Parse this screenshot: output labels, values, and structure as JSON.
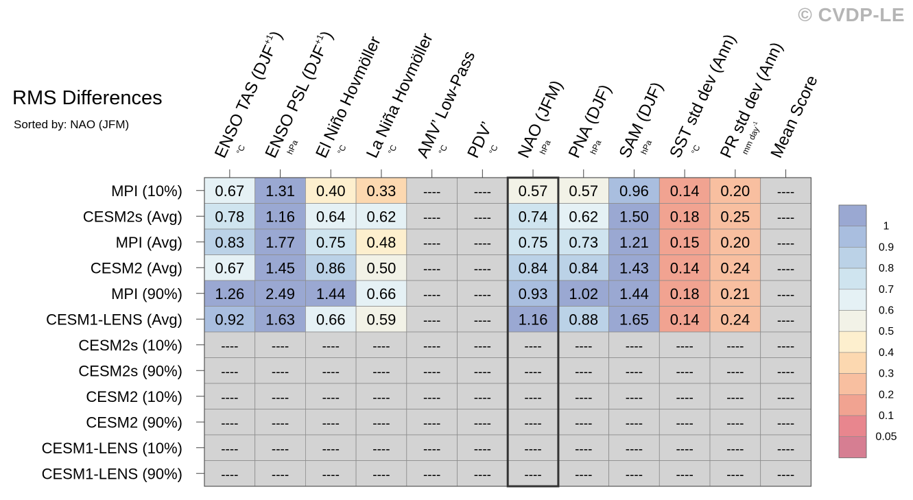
{
  "watermark": "© CVDP-LE",
  "chart_data": {
    "type": "heatmap",
    "title": "RMS Differences",
    "subtitle": "Sorted by: NAO (JFM)",
    "columns": [
      {
        "label": "ENSO TAS (DJF",
        "sup": "+1",
        "close": ")",
        "unit": "°C"
      },
      {
        "label": "ENSO PSL (DJF",
        "sup": "+1",
        "close": ")",
        "unit": "hPa"
      },
      {
        "label": "El Niño Hovmöller",
        "sup": "",
        "close": "",
        "unit": "°C"
      },
      {
        "label": "La Niña Hovmöller",
        "sup": "",
        "close": "",
        "unit": "°C"
      },
      {
        "label": "AMV’ Low-Pass",
        "sup": "",
        "close": "",
        "unit": "°C"
      },
      {
        "label": "PDV’",
        "sup": "",
        "close": "",
        "unit": "°C"
      },
      {
        "label": "NAO (JFM)",
        "sup": "",
        "close": "",
        "unit": "hPa"
      },
      {
        "label": "PNA (DJF)",
        "sup": "",
        "close": "",
        "unit": "hPa"
      },
      {
        "label": "SAM (DJF)",
        "sup": "",
        "close": "",
        "unit": "hPa"
      },
      {
        "label": "SST std dev (Ann)",
        "sup": "",
        "close": "",
        "unit": "°C"
      },
      {
        "label": "PR std dev (Ann)",
        "sup": "",
        "close": "",
        "unit": "mm day",
        "unit_sup": "-1"
      },
      {
        "label": "Mean Score",
        "sup": "",
        "close": "",
        "unit": ""
      }
    ],
    "rows": [
      "MPI (10%)",
      "CESM2s (Avg)",
      "MPI (Avg)",
      "CESM2 (Avg)",
      "MPI (90%)",
      "CESM1-LENS (Avg)",
      "CESM2s (10%)",
      "CESM2s (90%)",
      "CESM2 (10%)",
      "CESM2 (90%)",
      "CESM1-LENS (10%)",
      "CESM1-LENS (90%)"
    ],
    "values": [
      [
        0.67,
        1.31,
        0.4,
        0.33,
        null,
        null,
        0.57,
        0.57,
        0.96,
        0.14,
        0.2,
        null
      ],
      [
        0.78,
        1.16,
        0.64,
        0.62,
        null,
        null,
        0.74,
        0.62,
        1.5,
        0.18,
        0.25,
        null
      ],
      [
        0.83,
        1.77,
        0.75,
        0.48,
        null,
        null,
        0.75,
        0.73,
        1.21,
        0.15,
        0.2,
        null
      ],
      [
        0.67,
        1.45,
        0.86,
        0.5,
        null,
        null,
        0.84,
        0.84,
        1.43,
        0.14,
        0.24,
        null
      ],
      [
        1.26,
        2.49,
        1.44,
        0.66,
        null,
        null,
        0.93,
        1.02,
        1.44,
        0.18,
        0.21,
        null
      ],
      [
        0.92,
        1.63,
        0.66,
        0.59,
        null,
        null,
        1.16,
        0.88,
        1.65,
        0.14,
        0.24,
        null
      ],
      [
        null,
        null,
        null,
        null,
        null,
        null,
        null,
        null,
        null,
        null,
        null,
        null
      ],
      [
        null,
        null,
        null,
        null,
        null,
        null,
        null,
        null,
        null,
        null,
        null,
        null
      ],
      [
        null,
        null,
        null,
        null,
        null,
        null,
        null,
        null,
        null,
        null,
        null,
        null
      ],
      [
        null,
        null,
        null,
        null,
        null,
        null,
        null,
        null,
        null,
        null,
        null,
        null
      ],
      [
        null,
        null,
        null,
        null,
        null,
        null,
        null,
        null,
        null,
        null,
        null,
        null
      ],
      [
        null,
        null,
        null,
        null,
        null,
        null,
        null,
        null,
        null,
        null,
        null,
        null
      ]
    ],
    "missing_label": "----",
    "highlight_column": "NAO (JFM)",
    "colorbar": {
      "labels": [
        "1",
        "0.9",
        "0.8",
        "0.7",
        "0.6",
        "0.5",
        "0.4",
        "0.3",
        "0.2",
        "0.1",
        "0.05"
      ],
      "colors": [
        "#9aa8d2",
        "#a9bedf",
        "#bbd2e7",
        "#cfe4ef",
        "#e5f1f5",
        "#f2f2e7",
        "#fdefce",
        "#fcd8b0",
        "#f8bfa0",
        "#f1a391",
        "#e8868e",
        "#d67e92"
      ]
    },
    "bins": [
      0.05,
      0.1,
      0.2,
      0.3,
      0.4,
      0.5,
      0.6,
      0.7,
      0.8,
      0.9,
      1.0
    ],
    "bin_colors": [
      "#d67e92",
      "#e8868e",
      "#f1a391",
      "#f8bfa0",
      "#fcd8b0",
      "#fdefce",
      "#f2f2e7",
      "#e5f1f5",
      "#cfe4ef",
      "#bbd2e7",
      "#a9bedf",
      "#9aa8d2"
    ],
    "missing_color": "#d3d3d3"
  }
}
